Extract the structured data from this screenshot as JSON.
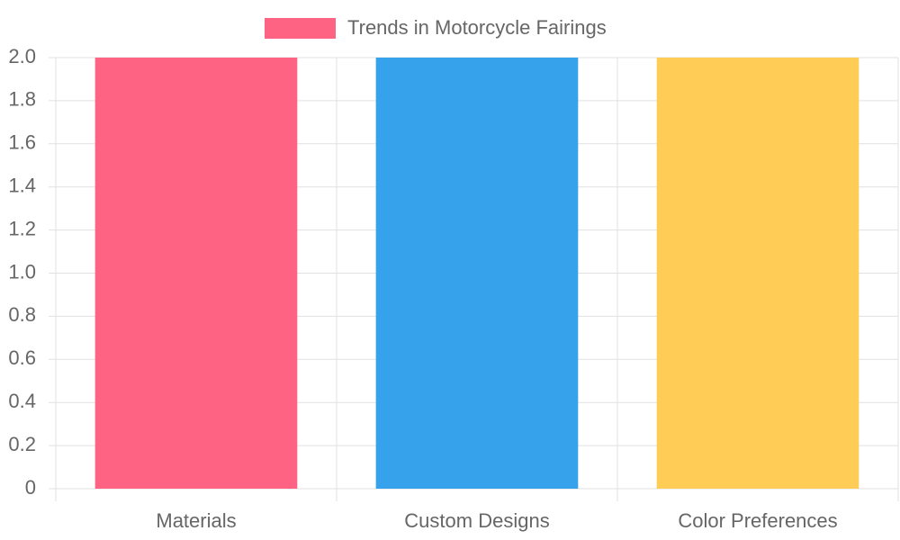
{
  "chart_data": {
    "type": "bar",
    "categories": [
      "Materials",
      "Custom Designs",
      "Color Preferences"
    ],
    "series": [
      {
        "name": "Trends in Motorcycle Fairings",
        "colors": [
          "#ff6384",
          "#36a2eb",
          "#ffcd56"
        ],
        "values": [
          2,
          2,
          2
        ]
      }
    ],
    "ylim": [
      0,
      2
    ],
    "yticks": [
      0,
      0.2,
      0.4,
      0.6,
      0.8,
      {
        "value": 1,
        "label": "1.0"
      },
      1.2,
      1.4,
      1.6,
      1.8,
      {
        "value": 2,
        "label": "2.0"
      }
    ],
    "grid": true,
    "legend": "top"
  }
}
